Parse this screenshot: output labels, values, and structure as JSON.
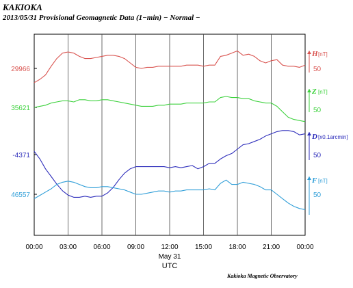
{
  "header": {
    "station": "KAKIOKA",
    "subtitle": "2013/05/31  Provisional Geomagnetic Data (1−min)  − Normal −"
  },
  "footer": {
    "credit": "Kakioka Magnetic Observatory"
  },
  "chart_data": {
    "type": "line",
    "title": "Provisional Geomagnetic Data (1-min)",
    "x_ticks": [
      "00:00",
      "03:00",
      "06:00",
      "09:00",
      "12:00",
      "15:00",
      "18:00",
      "21:00",
      "00:00"
    ],
    "x_date_label": "May 31",
    "x_unit_label": "UTC",
    "x_range_hours": [
      0,
      24
    ],
    "grid": true,
    "series": [
      {
        "component": "H",
        "unit": "[nT]",
        "base_label": "29966",
        "scale_label": "50",
        "base_value": 29966,
        "color": "#d9534f",
        "scale_range_units": 0.5,
        "points": [
          [
            0,
            29953
          ],
          [
            0.5,
            29956
          ],
          [
            1,
            29960
          ],
          [
            1.5,
            29968
          ],
          [
            2,
            29975
          ],
          [
            2.5,
            29980
          ],
          [
            3,
            29981
          ],
          [
            3.5,
            29980
          ],
          [
            4,
            29977
          ],
          [
            4.5,
            29975
          ],
          [
            5,
            29975
          ],
          [
            5.5,
            29976
          ],
          [
            6,
            29977
          ],
          [
            6.5,
            29978
          ],
          [
            7,
            29978
          ],
          [
            7.5,
            29977
          ],
          [
            8,
            29975
          ],
          [
            8.5,
            29971
          ],
          [
            9,
            29967
          ],
          [
            9.5,
            29966
          ],
          [
            10,
            29967
          ],
          [
            10.5,
            29967
          ],
          [
            11,
            29968
          ],
          [
            11.5,
            29968
          ],
          [
            12,
            29968
          ],
          [
            12.5,
            29968
          ],
          [
            13,
            29968
          ],
          [
            13.5,
            29969
          ],
          [
            14,
            29969
          ],
          [
            14.5,
            29969
          ],
          [
            15,
            29968
          ],
          [
            15.5,
            29969
          ],
          [
            16,
            29969
          ],
          [
            16.5,
            29977
          ],
          [
            17,
            29978
          ],
          [
            17.5,
            29980
          ],
          [
            18,
            29982
          ],
          [
            18.5,
            29978
          ],
          [
            19,
            29979
          ],
          [
            19.5,
            29977
          ],
          [
            20,
            29973
          ],
          [
            20.5,
            29971
          ],
          [
            21,
            29973
          ],
          [
            21.5,
            29974
          ],
          [
            22,
            29969
          ],
          [
            22.5,
            29968
          ],
          [
            23,
            29968
          ],
          [
            23.5,
            29967
          ],
          [
            24,
            29969
          ]
        ]
      },
      {
        "component": "Z",
        "unit": "[nT]",
        "base_label": "35621",
        "scale_label": "50",
        "base_value": 35621,
        "color": "#3cd13c",
        "scale_range_units": 0.5,
        "points": [
          [
            0,
            35621
          ],
          [
            0.5,
            35622
          ],
          [
            1,
            35623
          ],
          [
            1.5,
            35625
          ],
          [
            2,
            35626
          ],
          [
            2.5,
            35627
          ],
          [
            3,
            35627
          ],
          [
            3.5,
            35626
          ],
          [
            4,
            35628
          ],
          [
            4.5,
            35628
          ],
          [
            5,
            35627
          ],
          [
            5.5,
            35627
          ],
          [
            6,
            35628
          ],
          [
            6.5,
            35628
          ],
          [
            7,
            35627
          ],
          [
            7.5,
            35626
          ],
          [
            8,
            35625
          ],
          [
            8.5,
            35624
          ],
          [
            9,
            35623
          ],
          [
            9.5,
            35622
          ],
          [
            10,
            35622
          ],
          [
            10.5,
            35622
          ],
          [
            11,
            35623
          ],
          [
            11.5,
            35623
          ],
          [
            12,
            35624
          ],
          [
            12.5,
            35624
          ],
          [
            13,
            35624
          ],
          [
            13.5,
            35625
          ],
          [
            14,
            35625
          ],
          [
            14.5,
            35625
          ],
          [
            15,
            35625
          ],
          [
            15.5,
            35626
          ],
          [
            16,
            35626
          ],
          [
            16.5,
            35630
          ],
          [
            17,
            35631
          ],
          [
            17.5,
            35630
          ],
          [
            18,
            35630
          ],
          [
            18.5,
            35629
          ],
          [
            19,
            35629
          ],
          [
            19.5,
            35627
          ],
          [
            20,
            35626
          ],
          [
            20.5,
            35625
          ],
          [
            21,
            35625
          ],
          [
            21.5,
            35622
          ],
          [
            22,
            35617
          ],
          [
            22.5,
            35612
          ],
          [
            23,
            35610
          ],
          [
            23.5,
            35609
          ],
          [
            24,
            35608
          ]
        ]
      },
      {
        "component": "D",
        "unit": "[x0.1arcmin]",
        "base_label": "-4371",
        "scale_label": "50",
        "base_value": -4371,
        "color": "#2d2dbb",
        "scale_range_units": 0.5,
        "points": [
          [
            0,
            -4368
          ],
          [
            0.5,
            -4375
          ],
          [
            1,
            -4384
          ],
          [
            1.5,
            -4391
          ],
          [
            2,
            -4398
          ],
          [
            2.5,
            -4404
          ],
          [
            3,
            -4408
          ],
          [
            3.5,
            -4410
          ],
          [
            4,
            -4410
          ],
          [
            4.5,
            -4409
          ],
          [
            5,
            -4410
          ],
          [
            5.5,
            -4409
          ],
          [
            6,
            -4409
          ],
          [
            6.5,
            -4406
          ],
          [
            7,
            -4401
          ],
          [
            7.5,
            -4394
          ],
          [
            8,
            -4388
          ],
          [
            8.5,
            -4384
          ],
          [
            9,
            -4382
          ],
          [
            9.5,
            -4382
          ],
          [
            10,
            -4382
          ],
          [
            10.5,
            -4382
          ],
          [
            11,
            -4382
          ],
          [
            11.5,
            -4382
          ],
          [
            12,
            -4383
          ],
          [
            12.5,
            -4382
          ],
          [
            13,
            -4383
          ],
          [
            13.5,
            -4382
          ],
          [
            14,
            -4381
          ],
          [
            14.5,
            -4384
          ],
          [
            15,
            -4382
          ],
          [
            15.5,
            -4379
          ],
          [
            16,
            -4379
          ],
          [
            16.5,
            -4375
          ],
          [
            17,
            -4372
          ],
          [
            17.5,
            -4370
          ],
          [
            18,
            -4366
          ],
          [
            18.5,
            -4362
          ],
          [
            19,
            -4361
          ],
          [
            19.5,
            -4359
          ],
          [
            20,
            -4357
          ],
          [
            20.5,
            -4354
          ],
          [
            21,
            -4352
          ],
          [
            21.5,
            -4350
          ],
          [
            22,
            -4349
          ],
          [
            22.5,
            -4349
          ],
          [
            23,
            -4350
          ],
          [
            23.5,
            -4353
          ],
          [
            24,
            -4352
          ]
        ]
      },
      {
        "component": "F",
        "unit": "[nT]",
        "base_label": "46557",
        "scale_label": "50",
        "base_value": 46557,
        "color": "#2f9ed8",
        "scale_range_units": 0.5,
        "points": [
          [
            0,
            46553
          ],
          [
            0.5,
            46556
          ],
          [
            1,
            46559
          ],
          [
            1.5,
            46562
          ],
          [
            2,
            46566
          ],
          [
            2.5,
            46568
          ],
          [
            3,
            46569
          ],
          [
            3.5,
            46568
          ],
          [
            4,
            46566
          ],
          [
            4.5,
            46564
          ],
          [
            5,
            46563
          ],
          [
            5.5,
            46563
          ],
          [
            6,
            46564
          ],
          [
            6.5,
            46564
          ],
          [
            7,
            46563
          ],
          [
            7.5,
            46562
          ],
          [
            8,
            46561
          ],
          [
            8.5,
            46559
          ],
          [
            9,
            46557
          ],
          [
            9.5,
            46557
          ],
          [
            10,
            46558
          ],
          [
            10.5,
            46559
          ],
          [
            11,
            46560
          ],
          [
            11.5,
            46560
          ],
          [
            12,
            46559
          ],
          [
            12.5,
            46560
          ],
          [
            13,
            46560
          ],
          [
            13.5,
            46561
          ],
          [
            14,
            46561
          ],
          [
            14.5,
            46561
          ],
          [
            15,
            46561
          ],
          [
            15.5,
            46562
          ],
          [
            16,
            46561
          ],
          [
            16.5,
            46567
          ],
          [
            17,
            46570
          ],
          [
            17.5,
            46566
          ],
          [
            18,
            46566
          ],
          [
            18.5,
            46568
          ],
          [
            19,
            46567
          ],
          [
            19.5,
            46566
          ],
          [
            20,
            46564
          ],
          [
            20.5,
            46561
          ],
          [
            21,
            46561
          ],
          [
            21.5,
            46557
          ],
          [
            22,
            46553
          ],
          [
            22.5,
            46549
          ],
          [
            23,
            46546
          ],
          [
            23.5,
            46544
          ],
          [
            24,
            46543
          ]
        ]
      }
    ]
  }
}
